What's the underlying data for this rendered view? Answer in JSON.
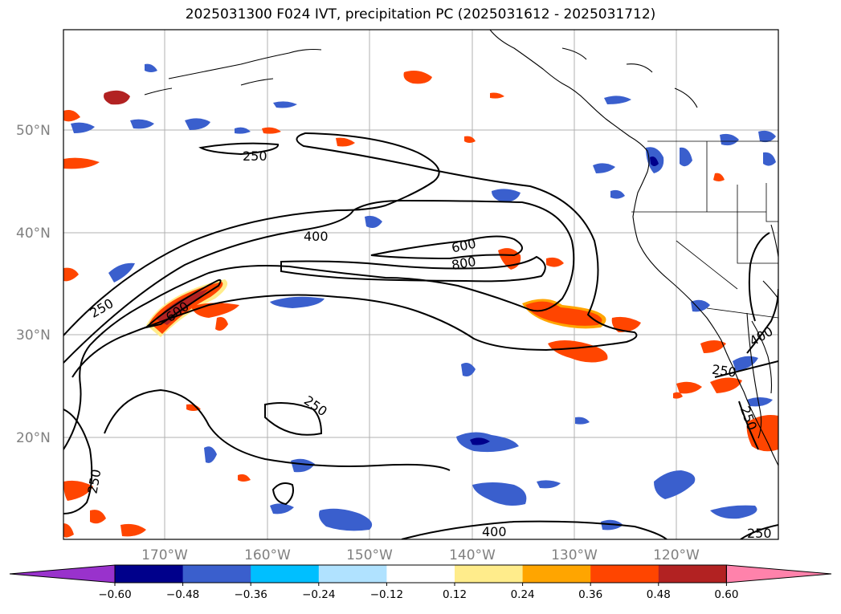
{
  "title": "2025031300 F024 IVT, precipitation PC (2025031612 - 2025031712)",
  "map": {
    "lat_labels": [
      "50°N",
      "40°N",
      "30°N",
      "20°N"
    ],
    "lon_labels": [
      "170°W",
      "160°W",
      "150°W",
      "140°W",
      "130°W",
      "120°W"
    ],
    "contour_levels": [
      "250",
      "400",
      "600",
      "800"
    ],
    "contour_label_texts": [
      "250",
      "400",
      "600",
      "800",
      "250",
      "600",
      "250",
      "250",
      "250",
      "400",
      "400",
      "250",
      "250"
    ]
  },
  "colorbar": {
    "tick_labels": [
      "−0.60",
      "−0.48",
      "−0.36",
      "−0.24",
      "−0.12",
      "0.12",
      "0.24",
      "0.36",
      "0.48",
      "0.60"
    ],
    "colors": [
      "#9932cc",
      "#00008b",
      "#3a5fcd",
      "#00bfff",
      "#b0e2ff",
      "#ffffff",
      "#ffec8b",
      "#ffa500",
      "#ff4500",
      "#b22222",
      "#ff82ab"
    ]
  }
}
